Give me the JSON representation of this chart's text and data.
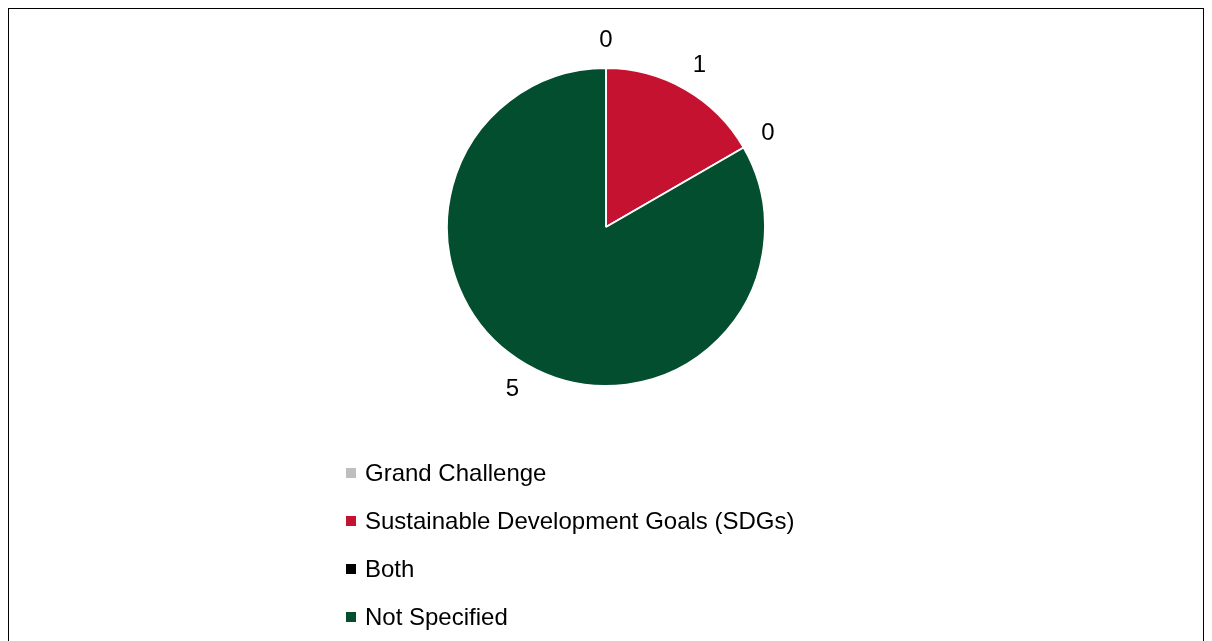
{
  "chart_data": {
    "type": "pie",
    "categories": [
      "Grand Challenge",
      "Sustainable Development Goals (SDGs)",
      "Both",
      "Not Specified"
    ],
    "values": [
      0,
      1,
      0,
      5
    ],
    "colors": [
      "#bfbfbf",
      "#c41230",
      "#000000",
      "#034e2f"
    ],
    "value_labels": [
      "0",
      "1",
      "0",
      "5"
    ],
    "legend": "bottom"
  }
}
